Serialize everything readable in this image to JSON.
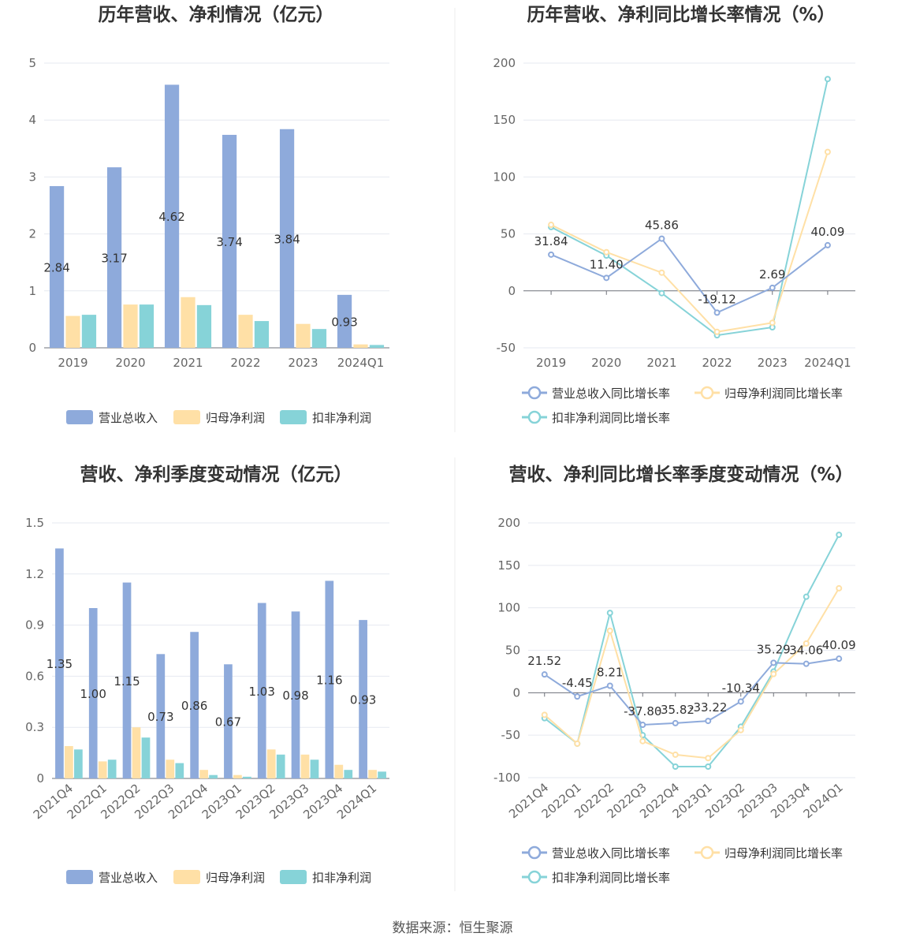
{
  "source": "数据来源：恒生聚源",
  "colors": {
    "revenue": "#8eaadb",
    "parent": "#ffe0a6",
    "nonrec": "#86d3d8"
  },
  "chart_data": [
    {
      "type": "bar",
      "title": "历年营收、净利情况（亿元）",
      "categories": [
        "2019",
        "2020",
        "2021",
        "2022",
        "2023",
        "2024Q1"
      ],
      "ylim": [
        0,
        5
      ],
      "yticks": [
        "0",
        "1",
        "2",
        "3",
        "4",
        "5"
      ],
      "legend": [
        "营业总收入",
        "归母净利润",
        "扣非净利润"
      ],
      "series": [
        {
          "name": "营业总收入",
          "values": [
            2.84,
            3.17,
            4.62,
            3.74,
            3.84,
            0.93
          ],
          "labels": [
            "2.84",
            "3.17",
            "4.62",
            "3.74",
            "3.84",
            "0.93"
          ]
        },
        {
          "name": "归母净利润",
          "values": [
            0.56,
            0.76,
            0.89,
            0.58,
            0.42,
            0.06
          ]
        },
        {
          "name": "扣非净利润",
          "values": [
            0.58,
            0.76,
            0.75,
            0.47,
            0.33,
            0.05
          ]
        }
      ]
    },
    {
      "type": "line",
      "title": "历年营收、净利同比增长率情况（%）",
      "categories": [
        "2019",
        "2020",
        "2021",
        "2022",
        "2023",
        "2024Q1"
      ],
      "ylim": [
        -50,
        200
      ],
      "yticks": [
        "-50",
        "0",
        "50",
        "100",
        "150",
        "200"
      ],
      "legend": [
        "营业总收入同比增长率",
        "归母净利润同比增长率",
        "扣非净利润同比增长率"
      ],
      "series": [
        {
          "name": "营业总收入同比增长率",
          "values": [
            31.84,
            11.4,
            45.86,
            -19.12,
            2.69,
            40.09
          ],
          "labels": [
            "31.84",
            "11.40",
            "45.86",
            "-19.12",
            "2.69",
            "40.09"
          ]
        },
        {
          "name": "归母净利润同比增长率",
          "values": [
            58,
            34,
            16,
            -36,
            -28,
            122
          ]
        },
        {
          "name": "扣非净利润同比增长率",
          "values": [
            56,
            31,
            -2,
            -39,
            -32,
            186
          ]
        }
      ]
    },
    {
      "type": "bar",
      "title": "营收、净利季度变动情况（亿元）",
      "categories": [
        "2021Q4",
        "2022Q1",
        "2022Q2",
        "2022Q3",
        "2022Q4",
        "2023Q1",
        "2023Q2",
        "2023Q3",
        "2023Q4",
        "2024Q1"
      ],
      "ylim": [
        0,
        1.5
      ],
      "yticks": [
        "0",
        "0.3",
        "0.6",
        "0.9",
        "1.2",
        "1.5"
      ],
      "legend": [
        "营业总收入",
        "归母净利润",
        "扣非净利润"
      ],
      "series": [
        {
          "name": "营业总收入",
          "values": [
            1.35,
            1.0,
            1.15,
            0.73,
            0.86,
            0.67,
            1.03,
            0.98,
            1.16,
            0.93
          ],
          "labels": [
            "1.35",
            "1.00",
            "1.15",
            "0.73",
            "0.86",
            "0.67",
            "1.03",
            "0.98",
            "1.16",
            "0.93"
          ]
        },
        {
          "name": "归母净利润",
          "values": [
            0.19,
            0.1,
            0.3,
            0.11,
            0.05,
            0.02,
            0.17,
            0.14,
            0.08,
            0.05
          ]
        },
        {
          "name": "扣非净利润",
          "values": [
            0.17,
            0.11,
            0.24,
            0.09,
            0.02,
            0.01,
            0.14,
            0.11,
            0.05,
            0.04
          ]
        }
      ]
    },
    {
      "type": "line",
      "title": "营收、净利同比增长率季度变动情况（%）",
      "categories": [
        "2021Q4",
        "2022Q1",
        "2022Q2",
        "2022Q3",
        "2022Q4",
        "2023Q1",
        "2023Q2",
        "2023Q3",
        "2023Q4",
        "2024Q1"
      ],
      "ylim": [
        -100,
        200
      ],
      "yticks": [
        "-100",
        "-50",
        "0",
        "50",
        "100",
        "150",
        "200"
      ],
      "legend": [
        "营业总收入同比增长率",
        "归母净利润同比增长率",
        "扣非净利润同比增长率"
      ],
      "series": [
        {
          "name": "营业总收入同比增长率",
          "values": [
            21.52,
            -4.45,
            8.21,
            -37.8,
            -35.82,
            -33.22,
            -10.34,
            35.29,
            34.06,
            40.09
          ],
          "labels": [
            "21.52",
            "-4.45",
            "8.21",
            "-37.80",
            "-35.82",
            "-33.22",
            "-10.34",
            "35.29",
            "34.06",
            "40.09"
          ]
        },
        {
          "name": "归母净利润同比增长率",
          "values": [
            -26,
            -60,
            73,
            -57,
            -73,
            -77,
            -44,
            22,
            58,
            123
          ]
        },
        {
          "name": "扣非净利润同比增长率",
          "values": [
            -30,
            -60,
            94,
            -50,
            -87,
            -87,
            -40,
            25,
            113,
            186
          ]
        }
      ]
    }
  ]
}
